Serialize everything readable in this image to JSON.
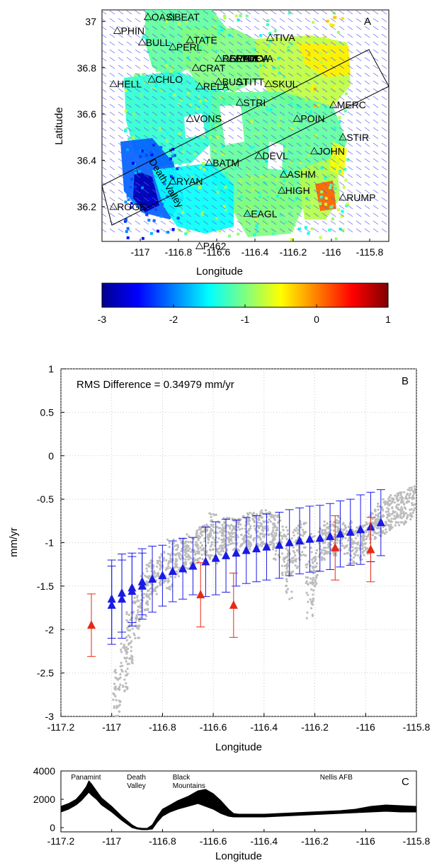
{
  "chart_data": [
    {
      "panel": "A",
      "type": "heatmap",
      "panel_label": "A",
      "xlabel": "Longitude",
      "ylabel": "Latitude",
      "x_ticks": [
        "-117",
        "-116.8",
        "-116.6",
        "-116.4",
        "-116.2",
        "-116",
        "-115.8"
      ],
      "y_ticks": [
        "37",
        "36.8",
        "36.6",
        "36.4",
        "36.2"
      ],
      "xlim": [
        -117.2,
        -115.7
      ],
      "ylim": [
        36.05,
        37.05
      ],
      "region_label": "Death Valley",
      "colorbar": {
        "ticks": [
          "-3",
          "-2",
          "-1",
          "0",
          "1"
        ],
        "range": [
          -3,
          1
        ],
        "colormap": "jet"
      },
      "stations": [
        {
          "name": "OASI",
          "lon": -116.96,
          "lat": 37.02
        },
        {
          "name": "BEAT",
          "lon": -116.84,
          "lat": 37.02
        },
        {
          "name": "PHIN",
          "lon": -117.12,
          "lat": 36.96
        },
        {
          "name": "BULL",
          "lon": -116.99,
          "lat": 36.91
        },
        {
          "name": "PERL",
          "lon": -116.83,
          "lat": 36.89
        },
        {
          "name": "TATE",
          "lon": -116.74,
          "lat": 36.92
        },
        {
          "name": "TIVA",
          "lon": -116.32,
          "lat": 36.93
        },
        {
          "name": "REPO",
          "lon": -116.59,
          "lat": 36.84
        },
        {
          "name": "SEPO",
          "lon": -116.55,
          "lat": 36.84
        },
        {
          "name": "RAPO",
          "lon": -116.52,
          "lat": 36.84
        },
        {
          "name": "YUCA",
          "lon": -116.49,
          "lat": 36.84
        },
        {
          "name": "DEVA",
          "lon": -116.46,
          "lat": 36.84
        },
        {
          "name": "CRAT",
          "lon": -116.71,
          "lat": 36.8
        },
        {
          "name": "HELL",
          "lon": -117.14,
          "lat": 36.73
        },
        {
          "name": "CHLO",
          "lon": -116.94,
          "lat": 36.75
        },
        {
          "name": "BUST",
          "lon": -116.59,
          "lat": 36.74
        },
        {
          "name": "TITT",
          "lon": -116.48,
          "lat": 36.74
        },
        {
          "name": "SKUL",
          "lon": -116.33,
          "lat": 36.73
        },
        {
          "name": "RELA",
          "lon": -116.69,
          "lat": 36.72
        },
        {
          "name": "STRI",
          "lon": -116.48,
          "lat": 36.65
        },
        {
          "name": "MERC",
          "lon": -115.99,
          "lat": 36.64
        },
        {
          "name": "VONS",
          "lon": -116.74,
          "lat": 36.58
        },
        {
          "name": "POIN",
          "lon": -116.18,
          "lat": 36.58
        },
        {
          "name": "STIR",
          "lon": -115.94,
          "lat": 36.5
        },
        {
          "name": "JOHN",
          "lon": -116.09,
          "lat": 36.44
        },
        {
          "name": "DEVL",
          "lon": -116.38,
          "lat": 36.42
        },
        {
          "name": "BATM",
          "lon": -116.64,
          "lat": 36.39
        },
        {
          "name": "ASHM",
          "lon": -116.25,
          "lat": 36.34
        },
        {
          "name": "RYAN",
          "lon": -116.83,
          "lat": 36.31
        },
        {
          "name": "HIGH",
          "lon": -116.26,
          "lat": 36.27
        },
        {
          "name": "RUMP",
          "lon": -115.94,
          "lat": 36.24
        },
        {
          "name": "ROGE",
          "lon": -117.14,
          "lat": 36.2
        },
        {
          "name": "EAGL",
          "lon": -116.44,
          "lat": 36.17
        },
        {
          "name": "P462",
          "lon": -116.69,
          "lat": 36.03
        }
      ]
    },
    {
      "panel": "B",
      "type": "scatter",
      "panel_label": "B",
      "annotation": "RMS Difference = 0.34979 mm/yr",
      "xlabel": "Longitude",
      "ylabel": "mm/yr",
      "xlim": [
        -117.2,
        -115.8
      ],
      "ylim": [
        -3,
        1
      ],
      "x_ticks": [
        "-117.2",
        "-117",
        "-116.8",
        "-116.6",
        "-116.4",
        "-116.2",
        "-116",
        "-115.8"
      ],
      "y_ticks": [
        "1",
        "0.5",
        "0",
        "-0.5",
        "-1",
        "-1.5",
        "-2",
        "-2.5",
        "-3"
      ],
      "grid": true,
      "colors": {
        "insar_points": "#bcbcbc",
        "gps_fit": "#1a1ae6",
        "gps_outlier": "#e62a16"
      },
      "insar_profile": {
        "x": [
          -116.98,
          -116.95,
          -116.93,
          -116.9,
          -116.87,
          -116.85,
          -116.83,
          -116.8,
          -116.77,
          -116.75,
          -116.72,
          -116.7,
          -116.67,
          -116.65,
          -116.62,
          -116.6,
          -116.57,
          -116.55,
          -116.52,
          -116.5,
          -116.47,
          -116.45,
          -116.42,
          -116.4,
          -116.37,
          -116.35,
          -116.32,
          -116.3,
          -116.27,
          -116.25,
          -116.22,
          -116.2,
          -116.17,
          -116.15,
          -116.12,
          -116.1,
          -116.07,
          -116.05,
          -116.02,
          -116,
          -115.97,
          -115.95,
          -115.92,
          -115.9,
          -115.87,
          -115.85,
          -115.82
        ],
        "center": [
          -2.75,
          -2.45,
          -2.1,
          -1.85,
          -1.6,
          -1.45,
          -1.4,
          -1.3,
          -1.25,
          -1.2,
          -1.15,
          -1.1,
          -1.05,
          -1.0,
          -0.98,
          -0.95,
          -0.95,
          -0.9,
          -0.92,
          -0.9,
          -0.88,
          -0.85,
          -0.85,
          -0.82,
          -0.85,
          -0.95,
          -1.1,
          -1.3,
          -1.05,
          -0.95,
          -1.5,
          -1.2,
          -1.0,
          -0.95,
          -0.95,
          -0.9,
          -0.95,
          -1.05,
          -1.0,
          -0.95,
          -0.8,
          -0.75,
          -0.7,
          -0.65,
          -0.62,
          -0.6,
          -0.55
        ],
        "spread": [
          0.3,
          0.3,
          0.3,
          0.25,
          0.25,
          0.25,
          0.2,
          0.2,
          0.3,
          0.2,
          0.2,
          0.2,
          0.2,
          0.2,
          0.2,
          0.3,
          0.2,
          0.2,
          0.2,
          0.2,
          0.2,
          0.2,
          0.2,
          0.2,
          0.2,
          0.3,
          0.3,
          0.35,
          0.25,
          0.2,
          0.4,
          0.3,
          0.2,
          0.2,
          0.2,
          0.2,
          0.2,
          0.2,
          0.2,
          0.2,
          0.2,
          0.2,
          0.2,
          0.2,
          0.2,
          0.2,
          0.2
        ]
      },
      "gps_fit": [
        {
          "x": -117.0,
          "y": -1.65,
          "err": 0.45
        },
        {
          "x": -117.0,
          "y": -1.72,
          "err": 0.45
        },
        {
          "x": -116.96,
          "y": -1.58,
          "err": 0.45
        },
        {
          "x": -116.96,
          "y": -1.65,
          "err": 0.45
        },
        {
          "x": -116.92,
          "y": -1.52,
          "err": 0.4
        },
        {
          "x": -116.92,
          "y": -1.56,
          "err": 0.4
        },
        {
          "x": -116.88,
          "y": -1.45,
          "err": 0.38
        },
        {
          "x": -116.88,
          "y": -1.5,
          "err": 0.38
        },
        {
          "x": -116.84,
          "y": -1.42,
          "err": 0.38
        },
        {
          "x": -116.8,
          "y": -1.38,
          "err": 0.35
        },
        {
          "x": -116.76,
          "y": -1.33,
          "err": 0.35
        },
        {
          "x": -116.72,
          "y": -1.3,
          "err": 0.35
        },
        {
          "x": -116.68,
          "y": -1.27,
          "err": 0.33
        },
        {
          "x": -116.63,
          "y": -1.22,
          "err": 0.4
        },
        {
          "x": -116.59,
          "y": -1.18,
          "err": 0.42
        },
        {
          "x": -116.55,
          "y": -1.15,
          "err": 0.42
        },
        {
          "x": -116.51,
          "y": -1.12,
          "err": 0.38
        },
        {
          "x": -116.47,
          "y": -1.09,
          "err": 0.38
        },
        {
          "x": -116.43,
          "y": -1.07,
          "err": 0.38
        },
        {
          "x": -116.39,
          "y": -1.05,
          "err": 0.38
        },
        {
          "x": -116.34,
          "y": -1.03,
          "err": 0.38
        },
        {
          "x": -116.3,
          "y": -1.0,
          "err": 0.38
        },
        {
          "x": -116.26,
          "y": -0.98,
          "err": 0.38
        },
        {
          "x": -116.22,
          "y": -0.96,
          "err": 0.38
        },
        {
          "x": -116.18,
          "y": -0.95,
          "err": 0.38
        },
        {
          "x": -116.14,
          "y": -0.93,
          "err": 0.38
        },
        {
          "x": -116.1,
          "y": -0.9,
          "err": 0.38
        },
        {
          "x": -116.06,
          "y": -0.88,
          "err": 0.38
        },
        {
          "x": -116.02,
          "y": -0.85,
          "err": 0.4
        },
        {
          "x": -115.98,
          "y": -0.82,
          "err": 0.4
        },
        {
          "x": -115.94,
          "y": -0.77,
          "err": 0.38
        }
      ],
      "gps_outlier": [
        {
          "x": -117.08,
          "y": -1.95,
          "err": 0.36
        },
        {
          "x": -116.65,
          "y": -1.6,
          "err": 0.37
        },
        {
          "x": -116.52,
          "y": -1.72,
          "err": 0.37
        },
        {
          "x": -116.12,
          "y": -1.06,
          "err": 0.37
        },
        {
          "x": -115.98,
          "y": -1.08,
          "err": 0.37
        }
      ]
    },
    {
      "panel": "C",
      "type": "area",
      "panel_label": "C",
      "xlabel": "Longitude",
      "ylim": [
        -300,
        4000
      ],
      "xlim": [
        -117.2,
        -115.8
      ],
      "x_ticks": [
        "-117.2",
        "-117",
        "-116.8",
        "-116.6",
        "-116.4",
        "-116.2",
        "-116",
        "-115.8"
      ],
      "y_ticks": [
        "4000",
        "2000",
        "0"
      ],
      "annotations": [
        {
          "lines": [
            "Panamint"
          ],
          "x": -117.16,
          "y": 3800
        },
        {
          "lines": [
            "Death",
            "Valley"
          ],
          "x": -116.94,
          "y": 3800
        },
        {
          "lines": [
            "Black",
            "Mountains"
          ],
          "x": -116.76,
          "y": 3800
        },
        {
          "lines": [
            "Nellis AFB"
          ],
          "x": -116.18,
          "y": 3300
        }
      ],
      "profile_x": [
        -117.2,
        -117.17,
        -117.14,
        -117.12,
        -117.1,
        -117.09,
        -117.08,
        -117.06,
        -117.04,
        -117.0,
        -116.96,
        -116.92,
        -116.9,
        -116.88,
        -116.86,
        -116.84,
        -116.82,
        -116.8,
        -116.77,
        -116.74,
        -116.7,
        -116.66,
        -116.63,
        -116.6,
        -116.57,
        -116.54,
        -116.52,
        -116.5,
        -116.46,
        -116.4,
        -116.34,
        -116.28,
        -116.22,
        -116.16,
        -116.1,
        -116.04,
        -115.98,
        -115.92,
        -115.86,
        -115.8
      ],
      "profile_top": [
        1500,
        1700,
        2000,
        2400,
        2900,
        3300,
        3100,
        2600,
        2100,
        1500,
        800,
        200,
        0,
        -50,
        -50,
        200,
        800,
        1300,
        1600,
        1900,
        2200,
        2600,
        2700,
        2400,
        1900,
        1300,
        1000,
        950,
        950,
        950,
        1000,
        1050,
        1100,
        1150,
        1200,
        1300,
        1500,
        1600,
        1550,
        1500
      ],
      "profile_bottom": [
        1100,
        1300,
        1600,
        1900,
        2300,
        2500,
        2300,
        2000,
        1600,
        1100,
        500,
        0,
        -100,
        -150,
        -150,
        -100,
        400,
        800,
        1100,
        1300,
        1500,
        1700,
        1500,
        1300,
        1000,
        800,
        750,
        750,
        750,
        750,
        800,
        850,
        900,
        950,
        1000,
        1050,
        1100,
        1150,
        1100,
        1100
      ]
    }
  ]
}
